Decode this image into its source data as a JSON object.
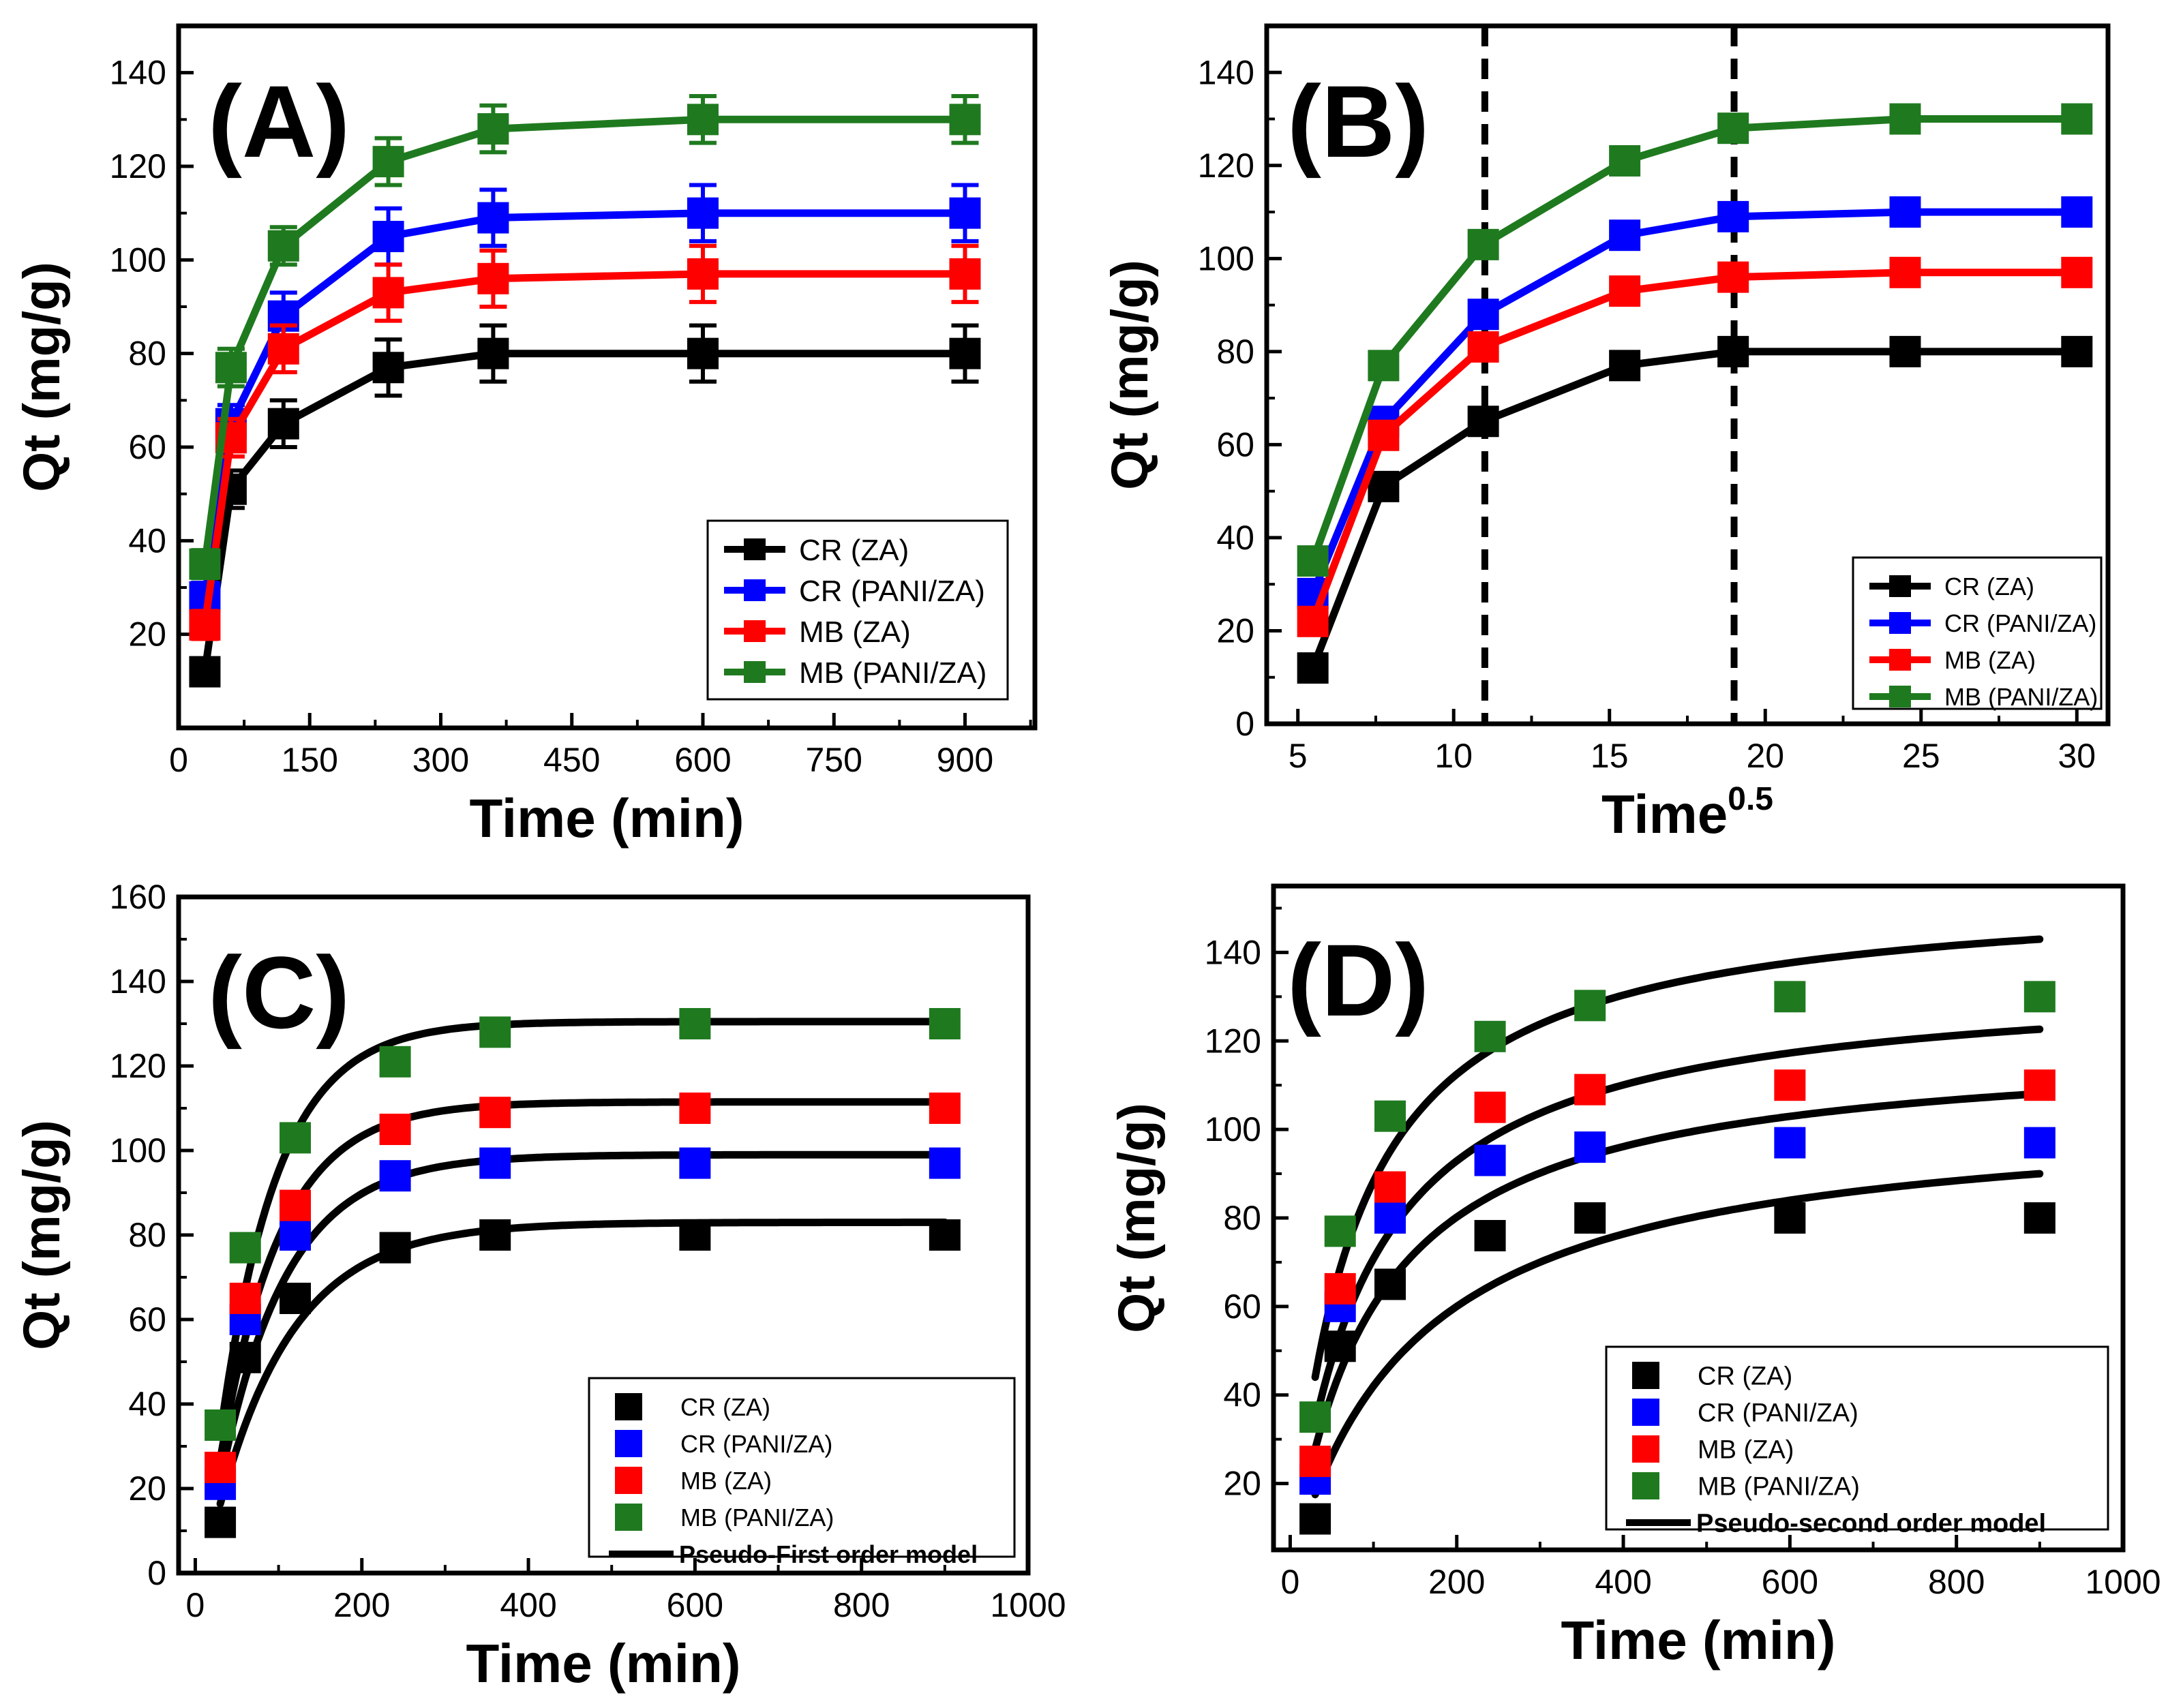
{
  "figure": {
    "colors": {
      "CR (ZA)": "#000000",
      "CR (PANI/ZA)": "#0000ff",
      "MB (ZA)": "#ff0000",
      "MB (PANI/ZA)": "#1f7a1f",
      "model": "#000000"
    }
  },
  "chart_data": [
    {
      "panel": "A",
      "type": "line",
      "title": "(A)",
      "xlabel": "Time (min)",
      "ylabel": "Qt (mg/g)",
      "xlim": [
        0,
        980
      ],
      "ylim": [
        0,
        150
      ],
      "xticks": [
        0,
        150,
        300,
        450,
        600,
        750,
        900
      ],
      "yticks": [
        20,
        40,
        60,
        80,
        100,
        120,
        140
      ],
      "error_bars": true,
      "legend_position": "bottom-right",
      "x": [
        30,
        60,
        120,
        240,
        360,
        600,
        900
      ],
      "series": [
        {
          "name": "CR (ZA)",
          "values": [
            12,
            51,
            65,
            77,
            80,
            80,
            80
          ],
          "errors": [
            2,
            4,
            5,
            6,
            6,
            6,
            6
          ]
        },
        {
          "name": "CR (PANI/ZA)",
          "values": [
            28,
            65,
            88,
            105,
            109,
            110,
            110
          ],
          "errors": [
            3,
            4,
            5,
            6,
            6,
            6,
            6
          ]
        },
        {
          "name": "MB (ZA)",
          "values": [
            22,
            62,
            81,
            93,
            96,
            97,
            97
          ],
          "errors": [
            3,
            4,
            5,
            6,
            6,
            6,
            6
          ]
        },
        {
          "name": "MB (PANI/ZA)",
          "values": [
            35,
            77,
            103,
            121,
            128,
            130,
            130
          ],
          "errors": [
            3,
            4,
            4,
            5,
            5,
            5,
            5
          ]
        }
      ]
    },
    {
      "panel": "B",
      "type": "line",
      "title": "(B)",
      "xlabel": "Time",
      "xlabel_superscript": "0.5",
      "ylabel": "Qt (mg/g)",
      "xlim": [
        4,
        31
      ],
      "ylim": [
        0,
        150
      ],
      "xticks": [
        5,
        10,
        15,
        20,
        25,
        30
      ],
      "yticks": [
        0,
        20,
        40,
        60,
        80,
        100,
        120,
        140
      ],
      "vlines": [
        11,
        19
      ],
      "legend_position": "bottom-right",
      "x": [
        5.48,
        7.75,
        10.95,
        15.49,
        18.97,
        24.49,
        30
      ],
      "series": [
        {
          "name": "CR (ZA)",
          "values": [
            12,
            51,
            65,
            77,
            80,
            80,
            80
          ]
        },
        {
          "name": "CR (PANI/ZA)",
          "values": [
            28,
            65,
            88,
            105,
            109,
            110,
            110
          ]
        },
        {
          "name": "MB (ZA)",
          "values": [
            22,
            62,
            81,
            93,
            96,
            97,
            97
          ]
        },
        {
          "name": "MB (PANI/ZA)",
          "values": [
            35,
            77,
            103,
            121,
            128,
            130,
            130
          ]
        }
      ]
    },
    {
      "panel": "C",
      "type": "scatter",
      "title": "(C)",
      "xlabel": "Time (min)",
      "ylabel": "Qt (mg/g)",
      "xlim": [
        -20,
        1000
      ],
      "ylim": [
        0,
        160
      ],
      "xticks": [
        0,
        200,
        400,
        600,
        800,
        1000
      ],
      "yticks": [
        0,
        20,
        40,
        60,
        80,
        100,
        120,
        140,
        160
      ],
      "legend_position": "bottom-right",
      "model_name": "Pseudo-First order model",
      "model_type": "pfo",
      "x": [
        30,
        60,
        120,
        240,
        360,
        600,
        900
      ],
      "series": [
        {
          "name": "CR (ZA)",
          "values": [
            12,
            51,
            65,
            77,
            80,
            80,
            80
          ]
        },
        {
          "name": "CR (PANI/ZA)",
          "values": [
            21,
            60,
            80,
            94,
            97,
            97,
            97
          ]
        },
        {
          "name": "MB (ZA)",
          "values": [
            25,
            65,
            87,
            105,
            109,
            110,
            110
          ]
        },
        {
          "name": "MB (PANI/ZA)",
          "values": [
            35,
            77,
            103,
            121,
            128,
            130,
            130
          ]
        }
      ],
      "model_params": [
        {
          "qe": 83,
          "k": 0.011,
          "t0": 10
        },
        {
          "qe": 99,
          "k": 0.0125,
          "t0": 10
        },
        {
          "qe": 111.5,
          "k": 0.0138,
          "t0": 10
        },
        {
          "qe": 130.5,
          "k": 0.0145,
          "t0": 10
        }
      ]
    },
    {
      "panel": "D",
      "type": "scatter",
      "title": "(D)",
      "xlabel": "Time (min)",
      "ylabel": "Qt (mg/g)",
      "xlim": [
        -20,
        1000
      ],
      "ylim": [
        5,
        155
      ],
      "xticks": [
        0,
        200,
        400,
        600,
        800,
        1000
      ],
      "yticks": [
        20,
        40,
        60,
        80,
        100,
        120,
        140
      ],
      "legend_position": "bottom-right",
      "model_name": "Pseudo-second order model",
      "model_type": "pso",
      "x": [
        30,
        60,
        120,
        240,
        360,
        600,
        900
      ],
      "series": [
        {
          "name": "CR (ZA)",
          "values": [
            12,
            51,
            65,
            76,
            80,
            80,
            80
          ]
        },
        {
          "name": "CR (PANI/ZA)",
          "values": [
            21,
            60,
            80,
            93,
            96,
            97,
            97
          ]
        },
        {
          "name": "MB (ZA)",
          "values": [
            25,
            64,
            87,
            105,
            109,
            110,
            110
          ]
        },
        {
          "name": "MB (PANI/ZA)",
          "values": [
            35,
            77,
            103,
            121,
            128,
            130,
            130
          ]
        }
      ],
      "model_params": [
        {
          "qe": 105,
          "k": 6.35e-05
        },
        {
          "qe": 120,
          "k": 8.39e-05
        },
        {
          "qe": 135,
          "k": 8.17e-05
        },
        {
          "qe": 155,
          "k": 8.53e-05
        }
      ]
    }
  ]
}
